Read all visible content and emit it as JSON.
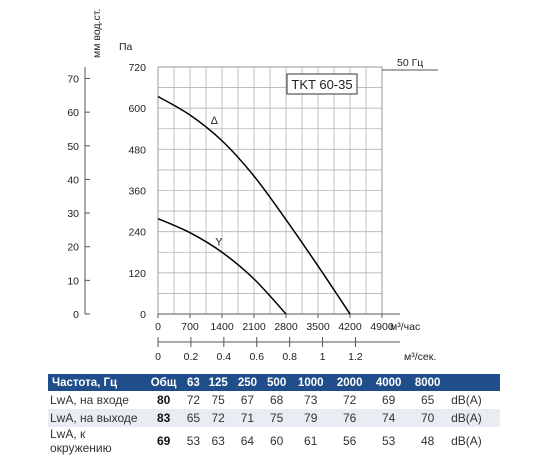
{
  "chart_data": {
    "type": "line",
    "title": "TKT 60-35",
    "frequency_label": "50 Гц",
    "ylabel_mm": "мм вод.ст.",
    "ylabel_pa": "Па",
    "xlabel_flow": "м³/час",
    "xlabel_sec": "м³/сек.",
    "y_mm_ticks": [
      "70",
      "60",
      "50",
      "40",
      "30",
      "20",
      "10",
      "0"
    ],
    "y_pa_ticks": [
      "720",
      "600",
      "480",
      "360",
      "240",
      "120",
      "0"
    ],
    "x_flow_ticks": [
      "0",
      "700",
      "1400",
      "2100",
      "2800",
      "3500",
      "4200",
      "4900"
    ],
    "x_sec_ticks": [
      "0",
      "0.2",
      "0.4",
      "0.6",
      "0.8",
      "1",
      "1.2"
    ],
    "xlim": [
      0,
      4900
    ],
    "ylim": [
      0,
      720
    ],
    "grid": true,
    "series": [
      {
        "name": "Δ",
        "x": [
          0,
          700,
          1400,
          2100,
          2800,
          3500,
          4200
        ],
        "y": [
          634,
          580,
          505,
          402,
          275,
          140,
          0
        ]
      },
      {
        "name": "Y",
        "x": [
          0,
          700,
          1400,
          2100,
          2800
        ],
        "y": [
          278,
          237,
          180,
          102,
          0
        ]
      }
    ]
  },
  "table": {
    "headers": [
      "Частота, Гц",
      "Общ",
      "63",
      "125",
      "250",
      "500",
      "1000",
      "2000",
      "4000",
      "8000",
      ""
    ],
    "rows": [
      {
        "label": "LwA, на входе",
        "total": "80",
        "values": [
          "72",
          "75",
          "67",
          "68",
          "73",
          "72",
          "69",
          "65"
        ],
        "unit": "dB(A)"
      },
      {
        "label": "LwA, на выходе",
        "total": "83",
        "values": [
          "65",
          "72",
          "71",
          "75",
          "79",
          "76",
          "74",
          "70"
        ],
        "unit": "dB(A)"
      },
      {
        "label": "LwA, к окружению",
        "total": "69",
        "values": [
          "53",
          "63",
          "64",
          "60",
          "61",
          "56",
          "53",
          "48"
        ],
        "unit": "dB(A)"
      }
    ]
  }
}
